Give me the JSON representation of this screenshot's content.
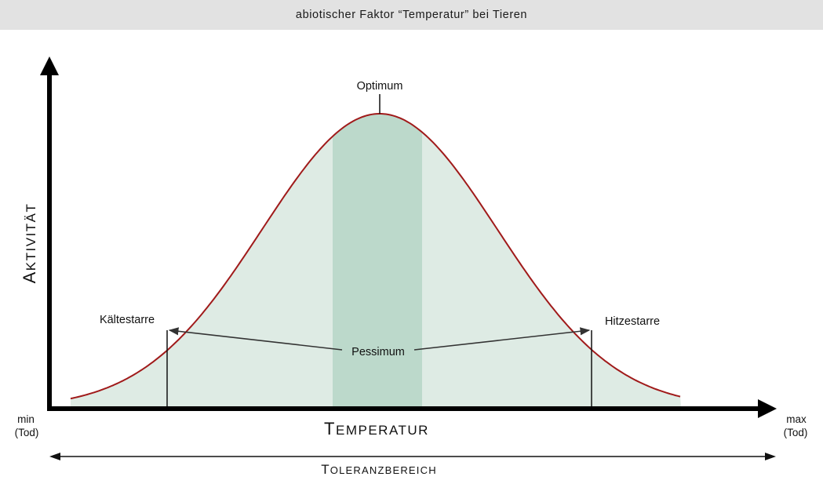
{
  "header": {
    "title": "abiotischer Faktor “Temperatur” bei Tieren"
  },
  "diagram": {
    "y_axis": {
      "first": "A",
      "rest": "KTIVITÄT"
    },
    "x_axis": {
      "first": "T",
      "rest": "EMPERATUR"
    },
    "tolerance": {
      "first": "T",
      "rest": "OLERANZBEREICH"
    },
    "labels": {
      "optimum": "Optimum",
      "pessimum": "Pessimum",
      "cold_rigor": "Kältestarre",
      "heat_rigor": "Hitzestarre",
      "min": "min",
      "min_note": "(Tod)",
      "max": "max",
      "max_note": "(Tod)"
    },
    "colors": {
      "curve": "#a01a1a",
      "area_fill": "#deebe4",
      "optimum_band": "#bcd9cb",
      "axis": "#000000"
    }
  }
}
